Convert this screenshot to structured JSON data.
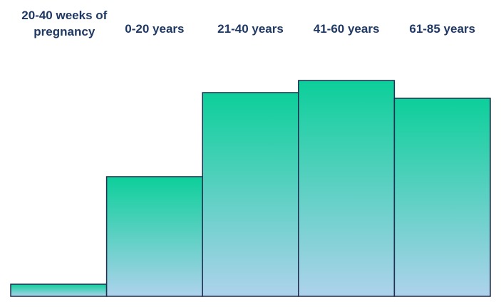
{
  "chart_data": {
    "type": "bar",
    "categories": [
      "20-40 weeks of pregnancy",
      "0-20 years",
      "21-40 years",
      "41-60 years",
      "61-85 years"
    ],
    "values": [
      17,
      168,
      286,
      303,
      278
    ],
    "color": "#0ccf9a",
    "color_bottom": "#aed2ec",
    "stroke": "#1f2d4e"
  }
}
